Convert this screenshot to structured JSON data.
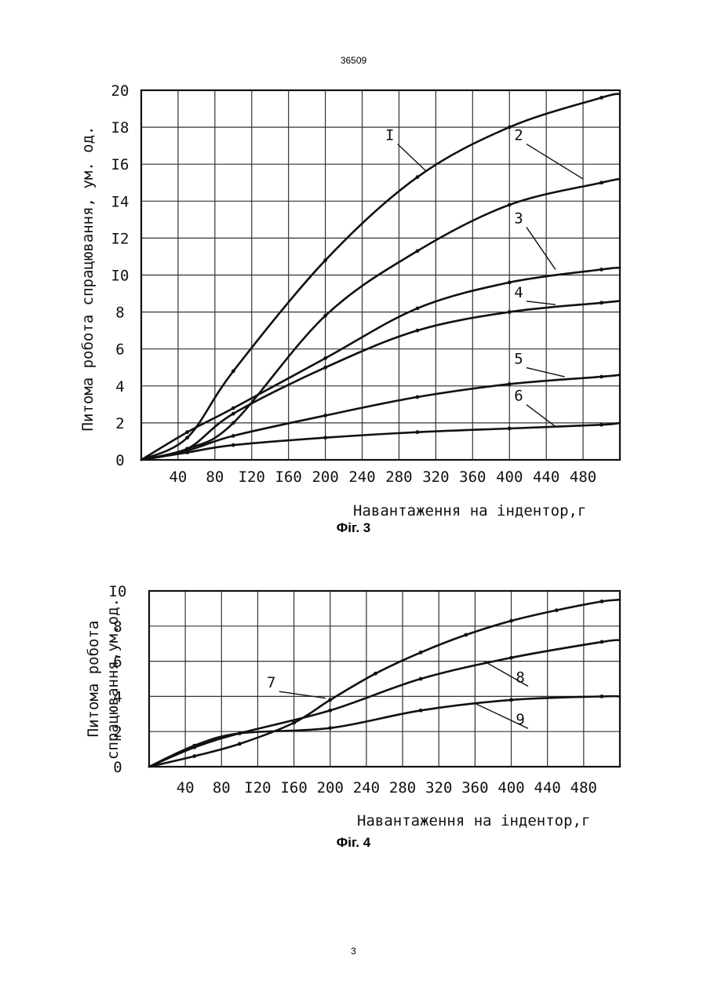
{
  "document": {
    "header_number": "36509",
    "footer_page_number": "3"
  },
  "chart_data": [
    {
      "type": "line",
      "caption": "Фіг. 3",
      "xlabel": "Навантаження на індентор,г",
      "ylabel": "Питома робота спрацювання, ум. од.",
      "xlim": [
        0,
        520
      ],
      "ylim": [
        0,
        20
      ],
      "x_ticks": [
        {
          "v": 40,
          "label": "40"
        },
        {
          "v": 80,
          "label": "80"
        },
        {
          "v": 120,
          "label": "I20"
        },
        {
          "v": 160,
          "label": "I60"
        },
        {
          "v": 200,
          "label": "200"
        },
        {
          "v": 240,
          "label": "240"
        },
        {
          "v": 280,
          "label": "280"
        },
        {
          "v": 320,
          "label": "320"
        },
        {
          "v": 360,
          "label": "360"
        },
        {
          "v": 400,
          "label": "400"
        },
        {
          "v": 440,
          "label": "440"
        },
        {
          "v": 480,
          "label": "480"
        }
      ],
      "y_ticks": [
        {
          "v": 0,
          "label": "0"
        },
        {
          "v": 2,
          "label": "2"
        },
        {
          "v": 4,
          "label": "4"
        },
        {
          "v": 6,
          "label": "6"
        },
        {
          "v": 8,
          "label": "8"
        },
        {
          "v": 10,
          "label": "I0"
        },
        {
          "v": 12,
          "label": "I2"
        },
        {
          "v": 14,
          "label": "I4"
        },
        {
          "v": 16,
          "label": "I6"
        },
        {
          "v": 18,
          "label": "I8"
        },
        {
          "v": 20,
          "label": "20"
        }
      ],
      "series": [
        {
          "label": "I",
          "x": [
            0,
            50,
            100,
            200,
            300,
            400,
            500,
            520
          ],
          "y": [
            0,
            1.2,
            4.8,
            10.8,
            15.3,
            18.0,
            19.6,
            19.8
          ],
          "label_pos": [
            270,
            17.3
          ],
          "leader_to": [
            310,
            15.6
          ]
        },
        {
          "label": "2",
          "x": [
            0,
            50,
            100,
            200,
            300,
            400,
            500,
            520
          ],
          "y": [
            0,
            0.6,
            2.0,
            7.8,
            11.3,
            13.8,
            15.0,
            15.2
          ],
          "label_pos": [
            410,
            17.3
          ],
          "leader_to": [
            480,
            15.2
          ]
        },
        {
          "label": "3",
          "x": [
            0,
            50,
            100,
            200,
            300,
            400,
            500,
            520
          ],
          "y": [
            0,
            1.5,
            2.8,
            5.5,
            8.2,
            9.6,
            10.3,
            10.4
          ],
          "label_pos": [
            410,
            12.8
          ],
          "leader_to": [
            450,
            10.3
          ]
        },
        {
          "label": "4",
          "x": [
            0,
            50,
            100,
            200,
            300,
            400,
            500,
            520
          ],
          "y": [
            0,
            0.6,
            2.5,
            5.0,
            7.0,
            8.0,
            8.5,
            8.6
          ],
          "label_pos": [
            410,
            8.8
          ],
          "leader_to": [
            450,
            8.4
          ]
        },
        {
          "label": "5",
          "x": [
            0,
            50,
            100,
            200,
            300,
            400,
            500,
            520
          ],
          "y": [
            0,
            0.5,
            1.3,
            2.4,
            3.4,
            4.1,
            4.5,
            4.6
          ],
          "label_pos": [
            410,
            5.2
          ],
          "leader_to": [
            460,
            4.5
          ]
        },
        {
          "label": "6",
          "x": [
            0,
            50,
            100,
            200,
            300,
            400,
            500,
            520
          ],
          "y": [
            0,
            0.4,
            0.8,
            1.2,
            1.5,
            1.7,
            1.9,
            2.0
          ],
          "label_pos": [
            410,
            3.2
          ],
          "leader_to": [
            450,
            1.8
          ]
        }
      ]
    },
    {
      "type": "line",
      "caption": "Фіг. 4",
      "xlabel": "Навантаження на індентор,г",
      "ylabel_line1": "Питома робота",
      "ylabel_line2": "спрацювання,ум.од.",
      "xlim": [
        0,
        520
      ],
      "ylim": [
        0,
        10
      ],
      "x_ticks": [
        {
          "v": 40,
          "label": "40"
        },
        {
          "v": 80,
          "label": "80"
        },
        {
          "v": 120,
          "label": "I20"
        },
        {
          "v": 160,
          "label": "I60"
        },
        {
          "v": 200,
          "label": "200"
        },
        {
          "v": 240,
          "label": "240"
        },
        {
          "v": 280,
          "label": "280"
        },
        {
          "v": 320,
          "label": "320"
        },
        {
          "v": 360,
          "label": "360"
        },
        {
          "v": 400,
          "label": "400"
        },
        {
          "v": 440,
          "label": "440"
        },
        {
          "v": 480,
          "label": "480"
        }
      ],
      "y_ticks": [
        {
          "v": 0,
          "label": "0"
        },
        {
          "v": 2,
          "label": "2"
        },
        {
          "v": 4,
          "label": "4"
        },
        {
          "v": 6,
          "label": "6"
        },
        {
          "v": 8,
          "label": "8"
        },
        {
          "v": 10,
          "label": "I0"
        }
      ],
      "series": [
        {
          "label": "7",
          "x": [
            0,
            50,
            100,
            160,
            200,
            250,
            300,
            350,
            400,
            450,
            500,
            520
          ],
          "y": [
            0,
            0.6,
            1.3,
            2.5,
            3.8,
            5.3,
            6.5,
            7.5,
            8.3,
            8.9,
            9.4,
            9.5
          ],
          "label_pos": [
            135,
            4.5
          ],
          "leader_to": [
            195,
            3.9
          ]
        },
        {
          "label": "8",
          "x": [
            0,
            50,
            100,
            200,
            300,
            400,
            500,
            520
          ],
          "y": [
            0,
            1.1,
            1.9,
            3.2,
            5.0,
            6.2,
            7.1,
            7.2
          ],
          "label_pos": [
            410,
            4.8
          ],
          "leader_to": [
            370,
            6.0
          ]
        },
        {
          "label": "9",
          "x": [
            0,
            50,
            100,
            200,
            300,
            400,
            500,
            520
          ],
          "y": [
            0,
            1.2,
            1.9,
            2.2,
            3.2,
            3.8,
            4.0,
            4.0
          ],
          "label_pos": [
            410,
            2.4
          ],
          "leader_to": [
            360,
            3.6
          ]
        }
      ]
    }
  ]
}
